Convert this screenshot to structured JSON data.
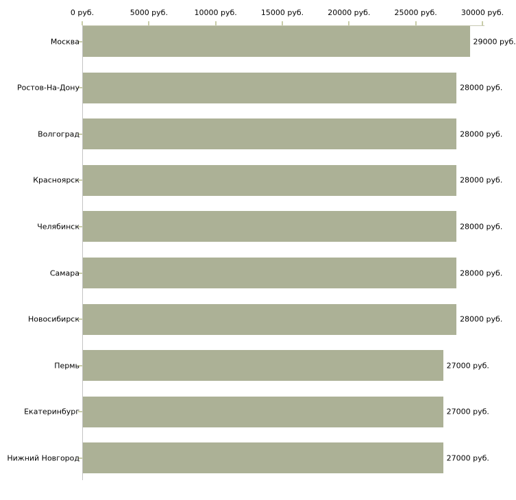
{
  "chart_data": {
    "type": "bar",
    "orientation": "horizontal",
    "title": "",
    "categories": [
      "Москва",
      "Ростов-На-Дону",
      "Волгоград",
      "Красноярск",
      "Челябинск",
      "Самара",
      "Новосибирск",
      "Пермь",
      "Екатеринбург",
      "Нижний Новгород"
    ],
    "values": [
      29000,
      28000,
      28000,
      28000,
      28000,
      28000,
      28000,
      27000,
      27000,
      27000
    ],
    "value_labels": [
      "29000 руб.",
      "28000 руб.",
      "28000 руб.",
      "28000 руб.",
      "28000 руб.",
      "28000 руб.",
      "28000 руб.",
      "27000 руб.",
      "27000 руб.",
      "27000 руб."
    ],
    "x_axis": {
      "position": "top",
      "range": [
        0,
        30000
      ],
      "tick_values": [
        0,
        5000,
        10000,
        15000,
        20000,
        25000,
        30000
      ],
      "tick_labels": [
        "0 руб.",
        "5000 руб.",
        "10000 руб.",
        "15000 руб.",
        "20000 руб.",
        "25000 руб.",
        "30000 руб."
      ],
      "unit": "руб."
    },
    "ylabel": "",
    "xlabel": "",
    "legend": "none",
    "grid": "off",
    "colors": {
      "bar": "#acb196",
      "axis_line_h": "#c6c8b2",
      "axis_line_v": "#c3c3c3",
      "tick": "#c9cda8",
      "text": "#000000",
      "background": "#ffffff"
    }
  }
}
